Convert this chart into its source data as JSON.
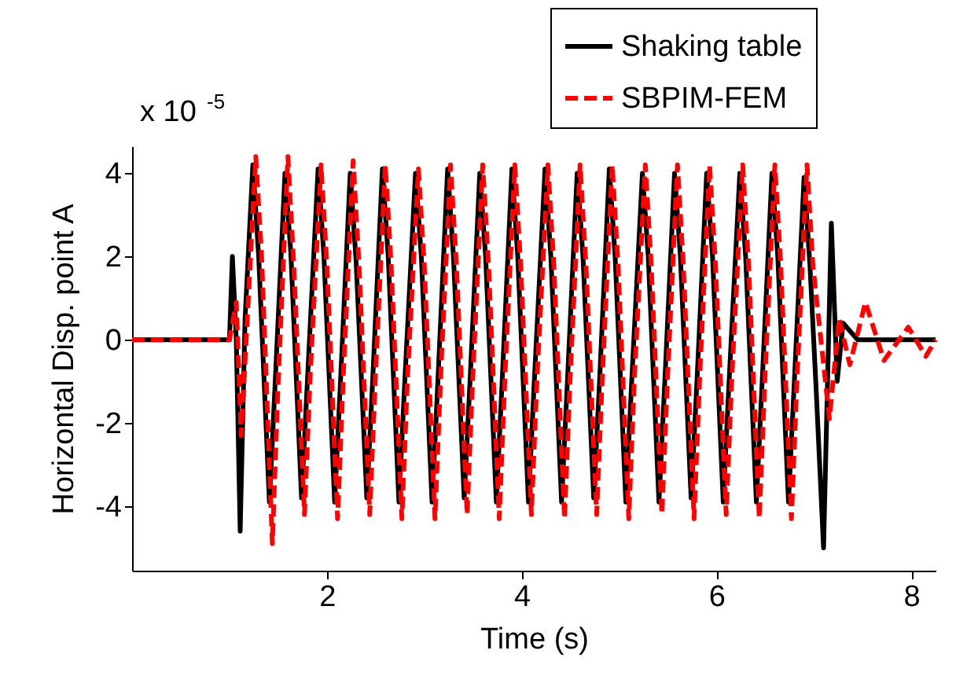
{
  "chart_data": {
    "type": "line",
    "xlabel": "Time (s)",
    "ylabel": "Horizontal Disp. point A",
    "annotations": [
      "x 10$^{-5}$"
    ],
    "xlim": [
      0,
      8.25
    ],
    "xticks": [
      2,
      4,
      6,
      8
    ],
    "ylim": [
      -5.55,
      4.65
    ],
    "yticks": [
      -4,
      -2,
      0,
      2,
      4
    ],
    "grid": false,
    "legend": "top right",
    "marker": "none",
    "series": [
      {
        "name": "Shaking table",
        "color": "#000000",
        "line_style": "solid",
        "x": [
          0,
          1.0,
          1.03,
          1.07,
          1.11,
          1.16,
          1.24,
          1.3,
          1.41,
          1.47,
          1.57,
          1.63,
          1.74,
          1.8,
          1.91,
          1.97,
          2.08,
          2.14,
          2.24,
          2.3,
          2.41,
          2.47,
          2.57,
          2.63,
          2.74,
          2.8,
          2.91,
          2.97,
          3.08,
          3.14,
          3.24,
          3.3,
          3.41,
          3.47,
          3.57,
          3.63,
          3.74,
          3.8,
          3.9,
          3.96,
          4.07,
          4.13,
          4.24,
          4.3,
          4.41,
          4.47,
          4.57,
          4.63,
          4.74,
          4.8,
          4.9,
          4.96,
          5.07,
          5.13,
          5.24,
          5.3,
          5.41,
          5.47,
          5.57,
          5.63,
          5.74,
          5.8,
          5.9,
          5.96,
          6.07,
          6.13,
          6.24,
          6.3,
          6.41,
          6.47,
          6.57,
          6.63,
          6.74,
          6.8,
          6.9,
          6.96,
          7.02,
          7.1,
          7.18,
          7.24,
          7.3,
          7.45,
          8.25
        ],
        "values": [
          0,
          0,
          2.0,
          0,
          -4.6,
          0.5,
          4.2,
          2.0,
          -3.9,
          -1.0,
          4.0,
          2.1,
          -3.8,
          -1.0,
          4.1,
          2.0,
          -3.9,
          -1.0,
          4.0,
          1.9,
          -3.8,
          -1.0,
          4.1,
          2.0,
          -3.9,
          -1.0,
          4.0,
          2.0,
          -3.9,
          -1.0,
          4.1,
          2.0,
          -3.8,
          -1.0,
          4.0,
          2.0,
          -3.9,
          -1.0,
          4.1,
          2.0,
          -3.9,
          -1.0,
          4.1,
          2.0,
          -3.9,
          -1.0,
          4.0,
          2.0,
          -3.8,
          -1.0,
          4.1,
          2.0,
          -3.9,
          -1.0,
          4.0,
          2.0,
          -3.9,
          -1.0,
          4.0,
          2.0,
          -3.8,
          -1.0,
          4.0,
          2.0,
          -3.9,
          -1.0,
          4.0,
          2.0,
          -3.9,
          -1.0,
          4.0,
          2.0,
          -3.9,
          -1.0,
          3.9,
          1.8,
          -1.0,
          -5.0,
          2.8,
          -1.0,
          0.4,
          0,
          0
        ]
      },
      {
        "name": "SBPIM-FEM",
        "color": "#ff0000",
        "line_style": "dashed",
        "x": [
          0,
          1.0,
          1.07,
          1.12,
          1.27,
          1.33,
          1.44,
          1.5,
          1.6,
          1.66,
          1.77,
          1.83,
          1.94,
          2.0,
          2.11,
          2.17,
          2.27,
          2.33,
          2.44,
          2.5,
          2.6,
          2.66,
          2.77,
          2.83,
          2.94,
          3.0,
          3.11,
          3.17,
          3.27,
          3.33,
          3.44,
          3.5,
          3.6,
          3.66,
          3.77,
          3.83,
          3.93,
          3.99,
          4.1,
          4.16,
          4.27,
          4.33,
          4.44,
          4.5,
          4.6,
          4.66,
          4.77,
          4.83,
          4.93,
          4.99,
          5.1,
          5.16,
          5.27,
          5.33,
          5.44,
          5.5,
          5.6,
          5.66,
          5.77,
          5.83,
          5.93,
          5.99,
          6.1,
          6.16,
          6.27,
          6.33,
          6.44,
          6.5,
          6.6,
          6.66,
          6.77,
          6.83,
          6.93,
          6.99,
          7.16,
          7.26,
          7.37,
          7.53,
          7.72,
          7.97,
          8.15,
          8.25
        ],
        "values": [
          0,
          0,
          0.9,
          -2.3,
          4.4,
          2.0,
          -4.9,
          -1.0,
          4.4,
          1.8,
          -4.2,
          -0.8,
          4.2,
          1.8,
          -4.3,
          -0.8,
          4.3,
          1.8,
          -4.2,
          -0.8,
          4.2,
          1.8,
          -4.3,
          -0.8,
          4.1,
          1.8,
          -4.3,
          -0.8,
          4.2,
          1.8,
          -4.2,
          -0.8,
          4.2,
          1.8,
          -4.3,
          -0.8,
          4.2,
          1.8,
          -4.2,
          -0.8,
          4.2,
          1.8,
          -4.3,
          -0.8,
          4.2,
          1.8,
          -4.2,
          -0.8,
          4.2,
          1.8,
          -4.3,
          -0.8,
          4.2,
          1.8,
          -4.2,
          -0.8,
          4.2,
          1.8,
          -4.3,
          -0.8,
          4.2,
          1.8,
          -4.2,
          -0.8,
          4.2,
          1.8,
          -4.3,
          -0.8,
          4.2,
          1.8,
          -4.3,
          -0.8,
          4.2,
          1.8,
          -1.9,
          0.5,
          -0.6,
          0.9,
          -0.5,
          0.3,
          -0.4,
          0
        ]
      }
    ]
  }
}
